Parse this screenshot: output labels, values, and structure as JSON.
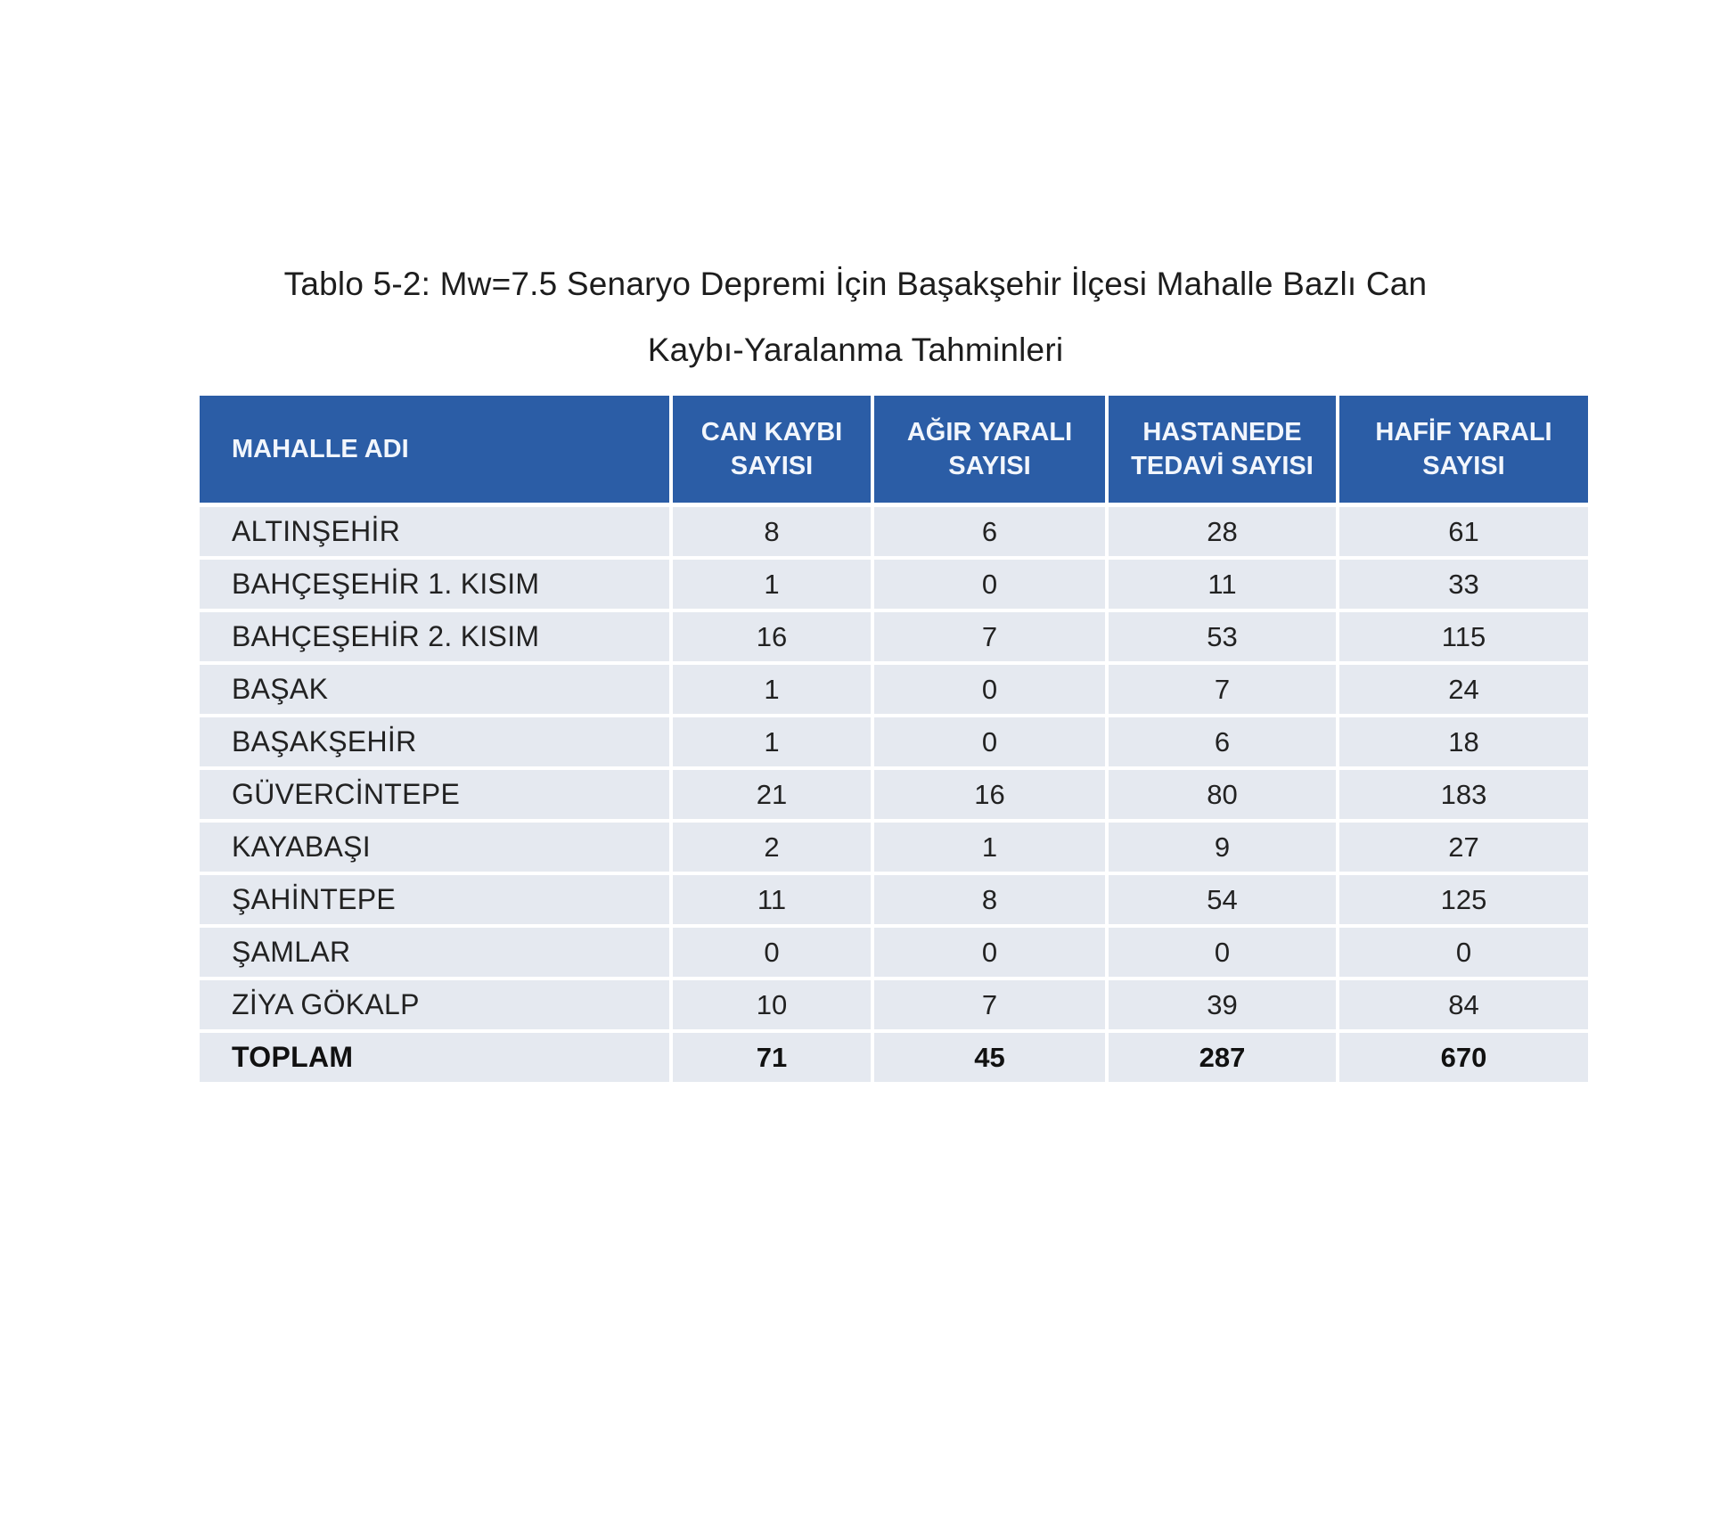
{
  "title": {
    "line1": "Tablo 5-2: Mw=7.5 Senaryo Depremi İçin Başakşehir İlçesi Mahalle Bazlı Can",
    "line2": "Kaybı-Yaralanma Tahminleri"
  },
  "table": {
    "headers": [
      {
        "line1": "MAHALLE ADI",
        "line2": ""
      },
      {
        "line1": "CAN KAYBI",
        "line2": "SAYISI"
      },
      {
        "line1": "AĞIR YARALI",
        "line2": "SAYISI"
      },
      {
        "line1": "HASTANEDE",
        "line2": "TEDAVİ SAYISI"
      },
      {
        "line1": "HAFİF YARALI",
        "line2": "SAYISI"
      }
    ],
    "rows": [
      {
        "name": "ALTINŞEHİR",
        "can": "8",
        "agir": "6",
        "hastane": "28",
        "hafif": "61"
      },
      {
        "name": "BAHÇEŞEHİR 1. KISIM",
        "can": "1",
        "agir": "0",
        "hastane": "11",
        "hafif": "33"
      },
      {
        "name": "BAHÇEŞEHİR 2. KISIM",
        "can": "16",
        "agir": "7",
        "hastane": "53",
        "hafif": "115"
      },
      {
        "name": "BAŞAK",
        "can": "1",
        "agir": "0",
        "hastane": "7",
        "hafif": "24"
      },
      {
        "name": "BAŞAKŞEHİR",
        "can": "1",
        "agir": "0",
        "hastane": "6",
        "hafif": "18"
      },
      {
        "name": "GÜVERCİNTEPE",
        "can": "21",
        "agir": "16",
        "hastane": "80",
        "hafif": "183"
      },
      {
        "name": "KAYABAŞI",
        "can": "2",
        "agir": "1",
        "hastane": "9",
        "hafif": "27"
      },
      {
        "name": "ŞAHİNTEPE",
        "can": "11",
        "agir": "8",
        "hastane": "54",
        "hafif": "125"
      },
      {
        "name": "ŞAMLAR",
        "can": "0",
        "agir": "0",
        "hastane": "0",
        "hafif": "0"
      },
      {
        "name": "ZİYA GÖKALP",
        "can": "10",
        "agir": "7",
        "hastane": "39",
        "hafif": "84"
      },
      {
        "name": "TOPLAM",
        "can": "71",
        "agir": "45",
        "hastane": "287",
        "hafif": "670"
      }
    ]
  },
  "colors": {
    "header_bg": "#2b5da6",
    "header_text": "#ffffff",
    "row_bg": "#e5e9f0",
    "page_bg": "#ffffff",
    "text": "#1c1c1c"
  }
}
